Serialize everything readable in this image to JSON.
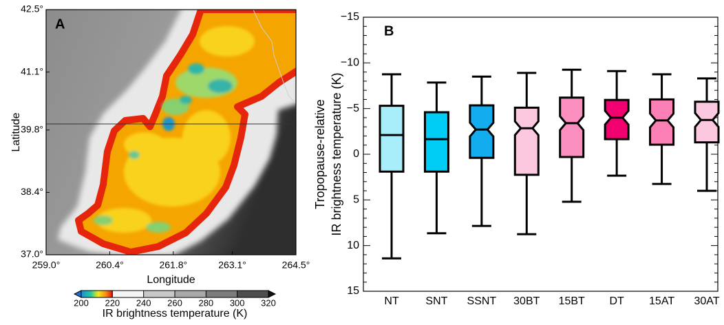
{
  "chart_data": [
    {
      "type": "map",
      "panel_label": "A",
      "xlabel": "Longitude",
      "ylabel": "Latitude",
      "xlim": [
        259.0,
        264.5
      ],
      "ylim": [
        37.0,
        42.5
      ],
      "xticks": [
        {
          "value": 259.0,
          "label": "259.0°"
        },
        {
          "value": 260.4,
          "label": "260.4°"
        },
        {
          "value": 261.8,
          "label": "261.8°"
        },
        {
          "value": 263.1,
          "label": "263.1°"
        },
        {
          "value": 264.5,
          "label": "264.5°"
        }
      ],
      "yticks": [
        {
          "value": 37.0,
          "label": "37.0°"
        },
        {
          "value": 38.4,
          "label": "38.4°"
        },
        {
          "value": 39.8,
          "label": "39.8°"
        },
        {
          "value": 41.1,
          "label": "41.1°"
        },
        {
          "value": 42.5,
          "label": "42.5°"
        }
      ],
      "colorbar": {
        "label": "IR brightness temperature (K)",
        "lim": [
          200,
          320
        ],
        "ticks": [
          200,
          220,
          240,
          260,
          280,
          300,
          320
        ]
      }
    },
    {
      "type": "box",
      "panel_label": "B",
      "ylabel": [
        "Tropopause-relative",
        "IR brightness temperature (K)"
      ],
      "ylim": [
        -15,
        15
      ],
      "y_inverted": true,
      "yticks": [
        {
          "value": -15,
          "label": "−15"
        },
        {
          "value": -10,
          "label": "−10"
        },
        {
          "value": -5,
          "label": "−5"
        },
        0,
        5,
        10,
        15
      ],
      "yticks_minor": [
        -14,
        -13,
        -12,
        -11,
        -9,
        -8,
        -7,
        -6,
        -4,
        -3,
        -2,
        -1,
        1,
        2,
        3,
        4,
        6,
        7,
        8,
        9,
        11,
        12,
        13,
        14
      ],
      "categories": [
        "NT",
        "SNT",
        "SSNT",
        "30BT",
        "15BT",
        "DT",
        "15AT",
        "30AT"
      ],
      "whisker_low": [
        -8.75,
        -7.85,
        -8.5,
        -8.9,
        -9.25,
        -9.1,
        -8.75,
        -8.3
      ],
      "q1": [
        -5.3,
        -4.6,
        -5.35,
        -5.1,
        -6.2,
        -5.95,
        -6.0,
        -5.75
      ],
      "median": [
        -2.1,
        -1.65,
        -2.7,
        -2.85,
        -3.4,
        -4.0,
        -3.7,
        -3.75
      ],
      "q3": [
        1.9,
        1.9,
        0.4,
        2.25,
        0.3,
        -1.65,
        -1.05,
        -1.3
      ],
      "whisker_high": [
        11.4,
        8.65,
        7.85,
        8.75,
        5.2,
        2.35,
        3.25,
        4.0
      ],
      "notched": [
        false,
        false,
        true,
        true,
        true,
        true,
        true,
        true
      ],
      "colors": [
        "#a8eefa",
        "#00cdf5",
        "#12acef",
        "#fcc8df",
        "#fb8fc0",
        "#f2006f",
        "#fb80b6",
        "#fcc8df"
      ]
    }
  ]
}
